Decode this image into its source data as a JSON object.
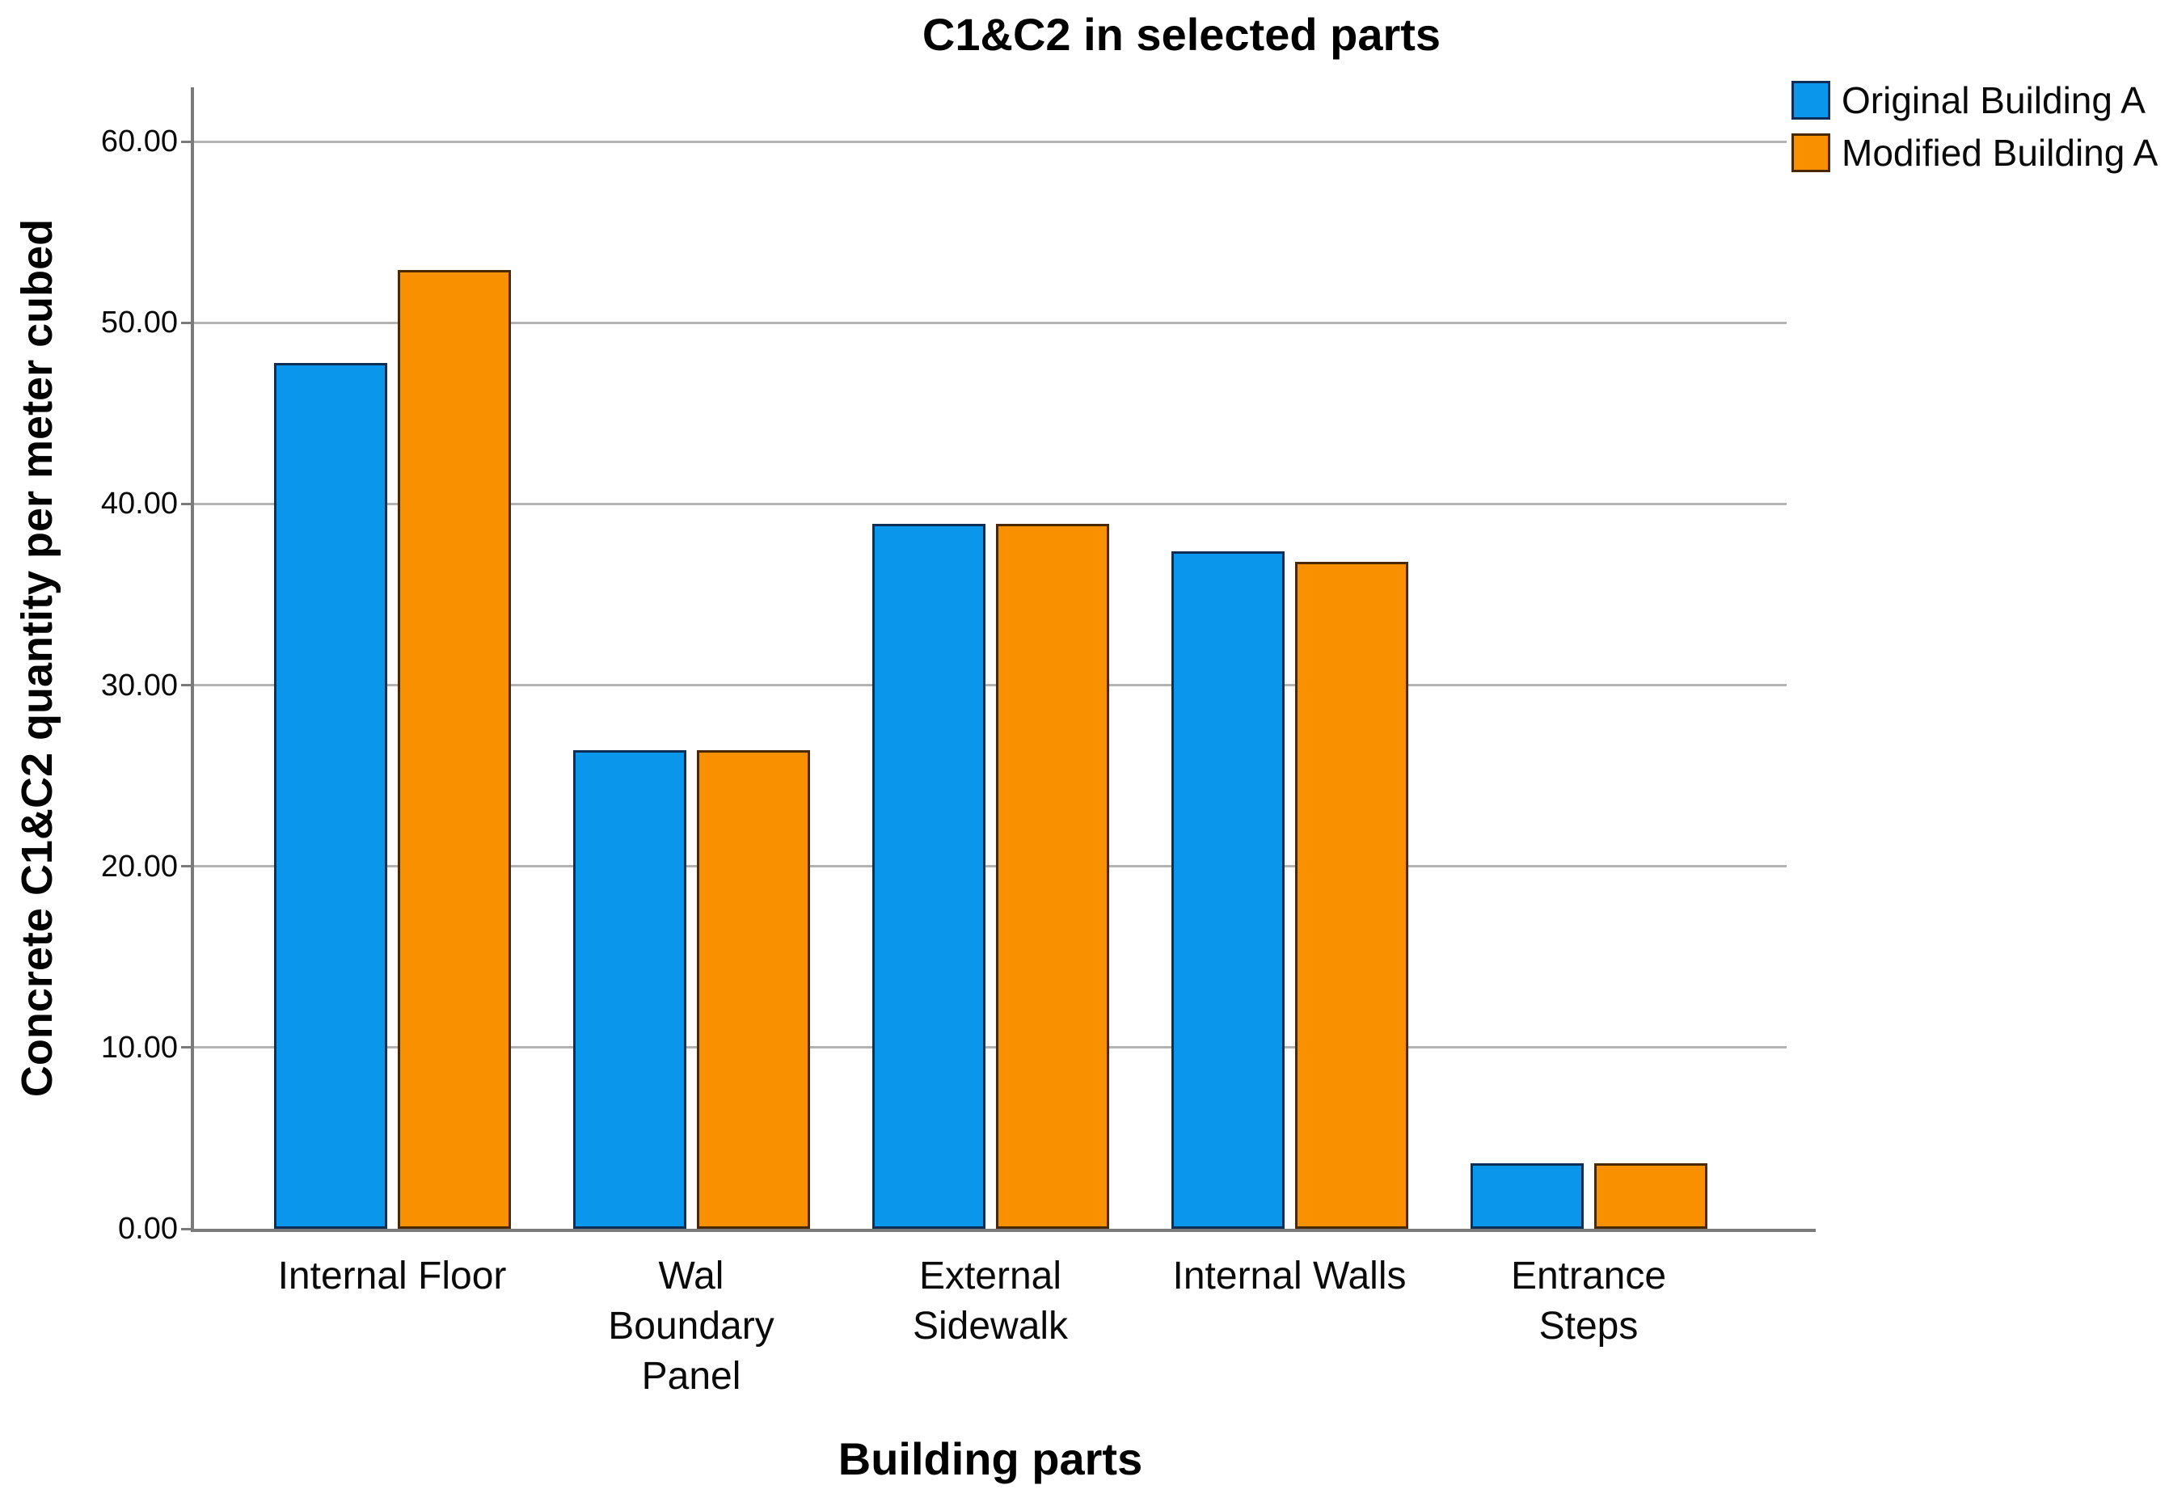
{
  "chart_data": {
    "type": "bar",
    "title": "C1&C2 in selected parts",
    "xlabel": "Building parts",
    "ylabel": "Concrete C1&C2 quantity per meter cubed",
    "categories": [
      "Internal Floor",
      "Wal Boundary Panel",
      "External Sidewalk",
      "Internal Walls",
      "Entrance Steps"
    ],
    "category_line_breaks": [
      [
        "Internal Floor"
      ],
      [
        "Wal",
        "Boundary",
        "Panel"
      ],
      [
        "External",
        "Sidewalk"
      ],
      [
        "Internal Walls"
      ],
      [
        "Entrance",
        "Steps"
      ]
    ],
    "series": [
      {
        "name": "Original Building A",
        "values": [
          47.8,
          26.4,
          38.9,
          37.4,
          3.6
        ],
        "fill": "#0996EB",
        "border": "#0E2F55"
      },
      {
        "name": "Modified Building A",
        "values": [
          52.9,
          26.4,
          38.9,
          36.8,
          3.6
        ],
        "fill": "#F89000",
        "border": "#4A2800"
      }
    ],
    "y_ticks": [
      {
        "value": 0,
        "label": "0.00"
      },
      {
        "value": 10,
        "label": "10.00"
      },
      {
        "value": 20,
        "label": "20.00"
      },
      {
        "value": 30,
        "label": "30.00"
      },
      {
        "value": 40,
        "label": "40.00"
      },
      {
        "value": 50,
        "label": "50.00"
      },
      {
        "value": 60,
        "label": "60.00"
      }
    ],
    "ylim": [
      0,
      63
    ],
    "grid": true,
    "legend_position": "top-right",
    "colors": {
      "grid": "#B3B3B3",
      "axis": "#7B7B7B",
      "text": "#000000"
    }
  }
}
